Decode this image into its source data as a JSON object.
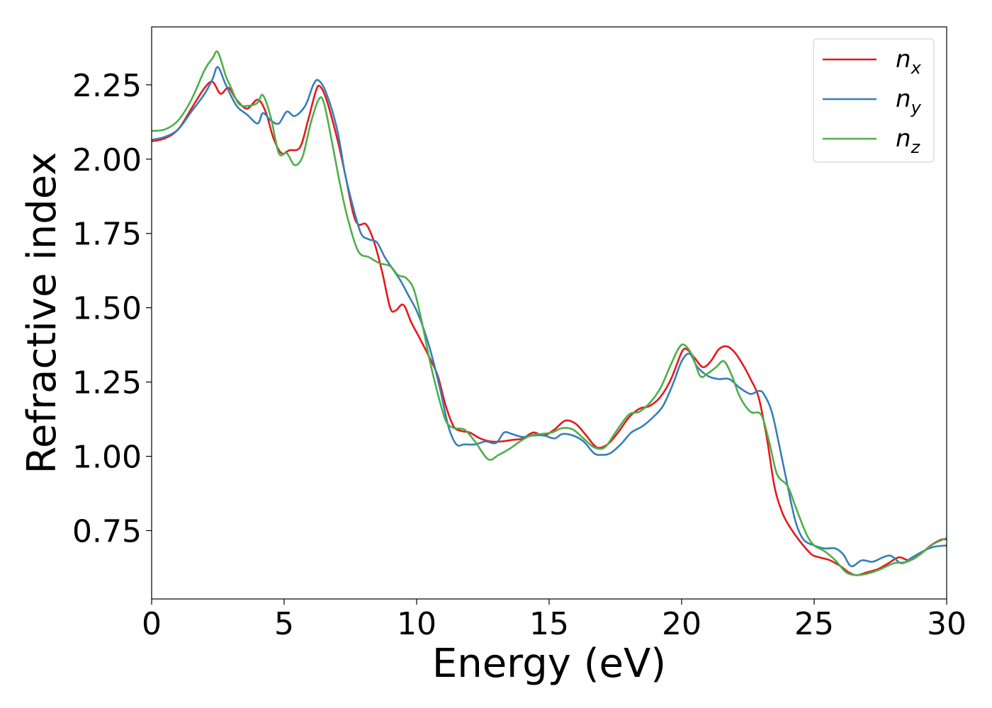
{
  "chart_data": {
    "type": "line",
    "xlabel": "Energy (eV)",
    "ylabel": "Refractive index",
    "xlim": [
      0,
      30
    ],
    "ylim": [
      0.52,
      2.445
    ],
    "xticks": [
      0,
      5,
      10,
      15,
      20,
      25,
      30
    ],
    "xtick_labels": [
      "0",
      "5",
      "10",
      "15",
      "20",
      "25",
      "30"
    ],
    "yticks": [
      0.75,
      1.0,
      1.25,
      1.5,
      1.75,
      2.0,
      2.25
    ],
    "ytick_labels": [
      "0.75",
      "1.00",
      "1.25",
      "1.50",
      "1.75",
      "2.00",
      "2.25"
    ],
    "grid": false,
    "legend_position": "top-right",
    "series": [
      {
        "name": "n_x",
        "label_base": "n",
        "label_sub": "x",
        "color": "#e41a1c",
        "points": [
          [
            0,
            2.06
          ],
          [
            0.5,
            2.07
          ],
          [
            1.0,
            2.1
          ],
          [
            1.5,
            2.17
          ],
          [
            2.0,
            2.24
          ],
          [
            2.3,
            2.26
          ],
          [
            2.6,
            2.22
          ],
          [
            2.9,
            2.24
          ],
          [
            3.2,
            2.2
          ],
          [
            3.6,
            2.17
          ],
          [
            4.0,
            2.2
          ],
          [
            4.3,
            2.16
          ],
          [
            4.6,
            2.07
          ],
          [
            4.9,
            2.02
          ],
          [
            5.2,
            2.03
          ],
          [
            5.6,
            2.04
          ],
          [
            5.9,
            2.13
          ],
          [
            6.2,
            2.23
          ],
          [
            6.35,
            2.245
          ],
          [
            6.6,
            2.2
          ],
          [
            7.0,
            2.07
          ],
          [
            7.3,
            1.95
          ],
          [
            7.6,
            1.82
          ],
          [
            7.8,
            1.78
          ],
          [
            8.1,
            1.78
          ],
          [
            8.4,
            1.72
          ],
          [
            8.7,
            1.62
          ],
          [
            9.0,
            1.5
          ],
          [
            9.2,
            1.49
          ],
          [
            9.5,
            1.51
          ],
          [
            9.8,
            1.45
          ],
          [
            10.1,
            1.4
          ],
          [
            10.5,
            1.33
          ],
          [
            10.8,
            1.27
          ],
          [
            11.1,
            1.17
          ],
          [
            11.4,
            1.1
          ],
          [
            11.7,
            1.085
          ],
          [
            12.0,
            1.08
          ],
          [
            12.4,
            1.06
          ],
          [
            12.8,
            1.05
          ],
          [
            13.2,
            1.05
          ],
          [
            13.6,
            1.055
          ],
          [
            14.0,
            1.06
          ],
          [
            14.4,
            1.08
          ],
          [
            14.8,
            1.07
          ],
          [
            15.2,
            1.09
          ],
          [
            15.6,
            1.12
          ],
          [
            16.0,
            1.11
          ],
          [
            16.4,
            1.07
          ],
          [
            16.8,
            1.03
          ],
          [
            17.2,
            1.04
          ],
          [
            17.6,
            1.08
          ],
          [
            18.0,
            1.13
          ],
          [
            18.4,
            1.16
          ],
          [
            18.8,
            1.17
          ],
          [
            19.2,
            1.2
          ],
          [
            19.6,
            1.26
          ],
          [
            20.0,
            1.35
          ],
          [
            20.2,
            1.36
          ],
          [
            20.5,
            1.33
          ],
          [
            20.8,
            1.3
          ],
          [
            21.1,
            1.32
          ],
          [
            21.4,
            1.36
          ],
          [
            21.7,
            1.37
          ],
          [
            22.0,
            1.35
          ],
          [
            22.3,
            1.31
          ],
          [
            22.6,
            1.26
          ],
          [
            22.9,
            1.2
          ],
          [
            23.2,
            1.07
          ],
          [
            23.5,
            0.9
          ],
          [
            23.8,
            0.81
          ],
          [
            24.1,
            0.76
          ],
          [
            24.5,
            0.71
          ],
          [
            24.9,
            0.67
          ],
          [
            25.2,
            0.66
          ],
          [
            25.6,
            0.65
          ],
          [
            26.0,
            0.63
          ],
          [
            26.3,
            0.61
          ],
          [
            26.6,
            0.6
          ],
          [
            27.0,
            0.61
          ],
          [
            27.4,
            0.62
          ],
          [
            27.8,
            0.64
          ],
          [
            28.2,
            0.66
          ],
          [
            28.6,
            0.65
          ],
          [
            29.0,
            0.67
          ],
          [
            29.4,
            0.7
          ],
          [
            29.8,
            0.72
          ],
          [
            30.0,
            0.72
          ]
        ]
      },
      {
        "name": "n_y",
        "label_base": "n",
        "label_sub": "y",
        "color": "#377eb8",
        "points": [
          [
            0,
            2.065
          ],
          [
            0.5,
            2.075
          ],
          [
            1.0,
            2.1
          ],
          [
            1.5,
            2.16
          ],
          [
            2.0,
            2.22
          ],
          [
            2.3,
            2.27
          ],
          [
            2.5,
            2.31
          ],
          [
            2.8,
            2.25
          ],
          [
            3.2,
            2.18
          ],
          [
            3.6,
            2.15
          ],
          [
            4.0,
            2.12
          ],
          [
            4.2,
            2.155
          ],
          [
            4.5,
            2.13
          ],
          [
            4.8,
            2.12
          ],
          [
            5.1,
            2.16
          ],
          [
            5.4,
            2.145
          ],
          [
            5.8,
            2.18
          ],
          [
            6.1,
            2.25
          ],
          [
            6.3,
            2.265
          ],
          [
            6.6,
            2.22
          ],
          [
            7.0,
            2.1
          ],
          [
            7.3,
            1.95
          ],
          [
            7.6,
            1.84
          ],
          [
            7.9,
            1.75
          ],
          [
            8.2,
            1.73
          ],
          [
            8.5,
            1.72
          ],
          [
            8.8,
            1.67
          ],
          [
            9.1,
            1.63
          ],
          [
            9.4,
            1.59
          ],
          [
            9.7,
            1.54
          ],
          [
            10.0,
            1.49
          ],
          [
            10.3,
            1.42
          ],
          [
            10.6,
            1.33
          ],
          [
            10.9,
            1.22
          ],
          [
            11.2,
            1.1
          ],
          [
            11.5,
            1.04
          ],
          [
            11.8,
            1.04
          ],
          [
            12.2,
            1.04
          ],
          [
            12.6,
            1.05
          ],
          [
            13.0,
            1.045
          ],
          [
            13.3,
            1.08
          ],
          [
            13.6,
            1.075
          ],
          [
            14.0,
            1.065
          ],
          [
            14.4,
            1.07
          ],
          [
            14.8,
            1.07
          ],
          [
            15.2,
            1.06
          ],
          [
            15.5,
            1.075
          ],
          [
            15.9,
            1.07
          ],
          [
            16.3,
            1.05
          ],
          [
            16.7,
            1.01
          ],
          [
            17.0,
            1.005
          ],
          [
            17.3,
            1.01
          ],
          [
            17.7,
            1.04
          ],
          [
            18.1,
            1.08
          ],
          [
            18.5,
            1.1
          ],
          [
            18.9,
            1.13
          ],
          [
            19.3,
            1.17
          ],
          [
            19.7,
            1.25
          ],
          [
            20.0,
            1.32
          ],
          [
            20.3,
            1.345
          ],
          [
            20.6,
            1.3
          ],
          [
            21.0,
            1.27
          ],
          [
            21.4,
            1.26
          ],
          [
            21.8,
            1.26
          ],
          [
            22.2,
            1.23
          ],
          [
            22.6,
            1.21
          ],
          [
            22.9,
            1.22
          ],
          [
            23.1,
            1.21
          ],
          [
            23.4,
            1.15
          ],
          [
            23.7,
            1.03
          ],
          [
            24.0,
            0.9
          ],
          [
            24.3,
            0.78
          ],
          [
            24.6,
            0.72
          ],
          [
            25.0,
            0.7
          ],
          [
            25.4,
            0.69
          ],
          [
            25.8,
            0.69
          ],
          [
            26.1,
            0.67
          ],
          [
            26.4,
            0.63
          ],
          [
            26.8,
            0.65
          ],
          [
            27.2,
            0.645
          ],
          [
            27.6,
            0.66
          ],
          [
            27.9,
            0.665
          ],
          [
            28.3,
            0.64
          ],
          [
            28.7,
            0.66
          ],
          [
            29.1,
            0.68
          ],
          [
            29.5,
            0.695
          ],
          [
            30.0,
            0.7
          ]
        ]
      },
      {
        "name": "n_z",
        "label_base": "n",
        "label_sub": "z",
        "color": "#4daf4a",
        "points": [
          [
            0,
            2.095
          ],
          [
            0.5,
            2.1
          ],
          [
            1.0,
            2.13
          ],
          [
            1.5,
            2.2
          ],
          [
            2.0,
            2.3
          ],
          [
            2.3,
            2.34
          ],
          [
            2.5,
            2.36
          ],
          [
            2.8,
            2.28
          ],
          [
            3.0,
            2.24
          ],
          [
            3.3,
            2.185
          ],
          [
            3.7,
            2.18
          ],
          [
            4.0,
            2.19
          ],
          [
            4.2,
            2.215
          ],
          [
            4.5,
            2.14
          ],
          [
            4.8,
            2.02
          ],
          [
            5.1,
            2.02
          ],
          [
            5.4,
            1.98
          ],
          [
            5.7,
            2.01
          ],
          [
            6.0,
            2.12
          ],
          [
            6.3,
            2.2
          ],
          [
            6.5,
            2.19
          ],
          [
            6.8,
            2.06
          ],
          [
            7.1,
            1.92
          ],
          [
            7.4,
            1.8
          ],
          [
            7.8,
            1.69
          ],
          [
            8.2,
            1.67
          ],
          [
            8.6,
            1.65
          ],
          [
            9.0,
            1.64
          ],
          [
            9.3,
            1.61
          ],
          [
            9.6,
            1.6
          ],
          [
            9.9,
            1.56
          ],
          [
            10.2,
            1.45
          ],
          [
            10.5,
            1.32
          ],
          [
            10.8,
            1.21
          ],
          [
            11.1,
            1.12
          ],
          [
            11.4,
            1.095
          ],
          [
            11.8,
            1.09
          ],
          [
            12.2,
            1.05
          ],
          [
            12.7,
            0.99
          ],
          [
            13.1,
            1.005
          ],
          [
            13.5,
            1.025
          ],
          [
            13.9,
            1.05
          ],
          [
            14.3,
            1.07
          ],
          [
            14.7,
            1.075
          ],
          [
            15.1,
            1.08
          ],
          [
            15.5,
            1.095
          ],
          [
            15.9,
            1.09
          ],
          [
            16.3,
            1.06
          ],
          [
            16.7,
            1.03
          ],
          [
            17.1,
            1.03
          ],
          [
            17.5,
            1.08
          ],
          [
            18.0,
            1.14
          ],
          [
            18.4,
            1.15
          ],
          [
            18.8,
            1.18
          ],
          [
            19.2,
            1.23
          ],
          [
            19.6,
            1.31
          ],
          [
            19.9,
            1.365
          ],
          [
            20.1,
            1.375
          ],
          [
            20.4,
            1.34
          ],
          [
            20.7,
            1.27
          ],
          [
            21.0,
            1.28
          ],
          [
            21.3,
            1.3
          ],
          [
            21.6,
            1.32
          ],
          [
            21.9,
            1.27
          ],
          [
            22.2,
            1.2
          ],
          [
            22.6,
            1.15
          ],
          [
            23.0,
            1.14
          ],
          [
            23.3,
            1.05
          ],
          [
            23.6,
            0.94
          ],
          [
            24.0,
            0.9
          ],
          [
            24.3,
            0.83
          ],
          [
            24.7,
            0.74
          ],
          [
            25.0,
            0.7
          ],
          [
            25.4,
            0.68
          ],
          [
            25.8,
            0.65
          ],
          [
            26.2,
            0.61
          ],
          [
            26.6,
            0.6
          ],
          [
            27.0,
            0.605
          ],
          [
            27.5,
            0.62
          ],
          [
            28.0,
            0.64
          ],
          [
            28.5,
            0.645
          ],
          [
            29.0,
            0.67
          ],
          [
            29.5,
            0.705
          ],
          [
            30.0,
            0.725
          ]
        ]
      }
    ]
  }
}
